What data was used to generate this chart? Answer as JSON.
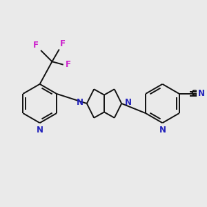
{
  "bg_color": "#eaeaea",
  "bond_color": "#111111",
  "N_color": "#2222bb",
  "F_color": "#cc22cc",
  "line_width": 1.4,
  "font_size": 8.5,
  "fig_width": 3.0,
  "fig_height": 3.0,
  "dpi": 100,
  "xlim": [
    0,
    10
  ],
  "ylim": [
    0,
    10
  ]
}
